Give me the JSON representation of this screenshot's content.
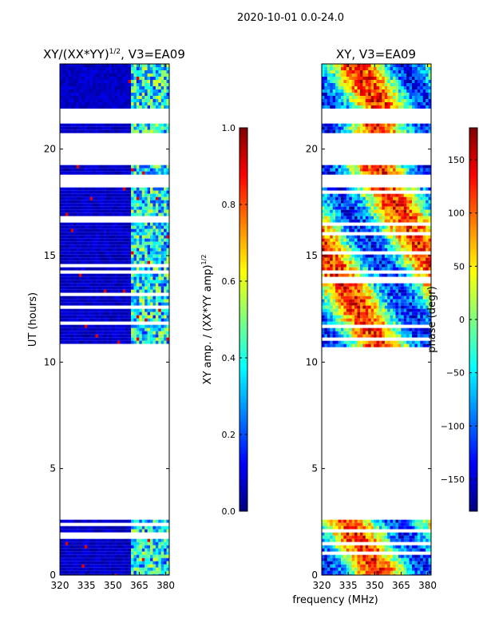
{
  "suptitle": "2020-10-01 0.0-24.0",
  "xlabel_shared": "frequency (MHz)",
  "colors": {
    "jet": [
      "#00007f",
      "#0000ff",
      "#007fff",
      "#00ffff",
      "#7fff7f",
      "#ffff00",
      "#ff7f00",
      "#ff0000",
      "#7f0000"
    ],
    "background": "#ffffff",
    "axis": "#000000"
  },
  "chart_data": [
    {
      "type": "heatmap",
      "title_prefix": "XY/(XX*YY)",
      "title_exp": "1/2",
      "title_suffix": ", V3=EA09",
      "xlabel": "",
      "ylabel": "UT (hours)",
      "xlim": [
        320,
        382
      ],
      "ylim": [
        0,
        24
      ],
      "xticks": [
        320,
        335,
        350,
        365,
        380
      ],
      "yticks": [
        0,
        5,
        10,
        15,
        20
      ],
      "data_bands_hours": [
        [
          0,
          2.6
        ],
        [
          10.8,
          18.2
        ],
        [
          18.8,
          19.4
        ],
        [
          20.8,
          21.2
        ],
        [
          22.0,
          24.0
        ]
      ],
      "bright_freq_band_mhz": [
        360,
        382
      ],
      "colorbar": {
        "label_main": "XY amp. / (XX*YY amp)",
        "label_exp": "1/2",
        "range": [
          0.0,
          1.0
        ],
        "ticks": [
          "0.0",
          "0.2",
          "0.4",
          "0.6",
          "0.8",
          "1.0"
        ],
        "tick_values": [
          0.0,
          0.2,
          0.4,
          0.6,
          0.8,
          1.0
        ]
      }
    },
    {
      "type": "heatmap",
      "title_prefix": "XY, V3=EA09",
      "title_exp": "",
      "title_suffix": "",
      "xlabel": "frequency (MHz)",
      "ylabel": "",
      "xlim": [
        320,
        382
      ],
      "ylim": [
        0,
        24
      ],
      "xticks": [
        320,
        335,
        350,
        365,
        380
      ],
      "yticks": [
        0,
        5,
        10,
        15,
        20
      ],
      "data_bands_hours": [
        [
          0,
          2.6
        ],
        [
          10.8,
          18.2
        ],
        [
          18.8,
          19.4
        ],
        [
          20.8,
          21.2
        ],
        [
          22.0,
          24.0
        ]
      ],
      "colorbar": {
        "label_main": "phase (degr)",
        "label_exp": "",
        "range": [
          -180,
          180
        ],
        "ticks": [
          "150",
          "100",
          "50",
          "0",
          "−50",
          "−100",
          "−150"
        ],
        "tick_values": [
          150,
          100,
          50,
          0,
          -50,
          -100,
          -150
        ]
      }
    }
  ]
}
